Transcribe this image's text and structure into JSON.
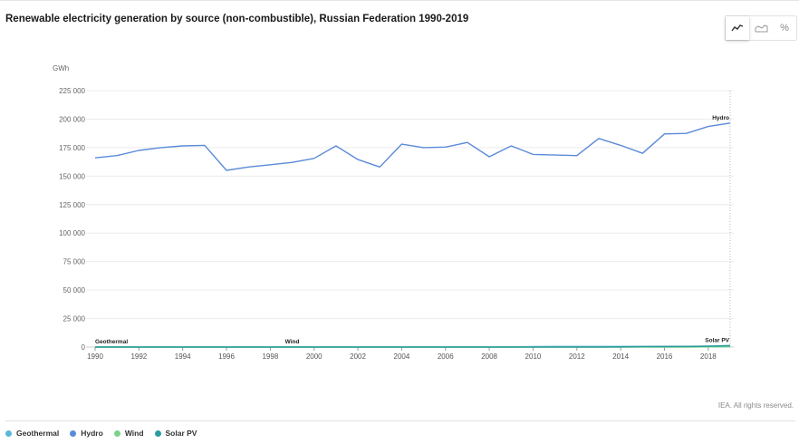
{
  "header": {
    "title": "Renewable electricity generation by source (non-combustible), Russian Federation 1990-2019"
  },
  "toolbar": {
    "buttons": [
      {
        "icon": "line-chart-icon",
        "active": true
      },
      {
        "icon": "area-chart-icon",
        "active": false
      },
      {
        "icon": "percent-icon",
        "label": "%",
        "active": false
      }
    ]
  },
  "footer": {
    "rights": "IEA. All rights reserved."
  },
  "chart_data": {
    "type": "line",
    "title": "Renewable electricity generation by source (non-combustible), Russian Federation 1990-2019",
    "ylabel": "GWh",
    "xlabel": "",
    "ylim": [
      0,
      225000
    ],
    "xlim": [
      1990,
      2019
    ],
    "yticks": [
      0,
      25000,
      50000,
      75000,
      100000,
      125000,
      150000,
      175000,
      200000,
      225000
    ],
    "ytick_labels": [
      "0",
      "25 000",
      "50 000",
      "75 000",
      "100 000",
      "125 000",
      "150 000",
      "175 000",
      "200 000",
      "225 000"
    ],
    "xticks": [
      1990,
      1992,
      1994,
      1996,
      1998,
      2000,
      2002,
      2004,
      2006,
      2008,
      2010,
      2012,
      2014,
      2016,
      2018
    ],
    "grid": true,
    "legend_position": "bottom-left",
    "x": [
      1990,
      1991,
      1992,
      1993,
      1994,
      1995,
      1996,
      1997,
      1998,
      1999,
      2000,
      2001,
      2002,
      2003,
      2004,
      2005,
      2006,
      2007,
      2008,
      2009,
      2010,
      2011,
      2012,
      2013,
      2014,
      2015,
      2016,
      2017,
      2018,
      2019
    ],
    "series": [
      {
        "name": "Geothermal",
        "color": "#58b8dc",
        "values": [
          0,
          0,
          0,
          0,
          0,
          0,
          0,
          0,
          0,
          0,
          0,
          0,
          0,
          0,
          0,
          0,
          0,
          0,
          0,
          0,
          400,
          450,
          450,
          450,
          450,
          450,
          450,
          450,
          450,
          450
        ],
        "label": "Geothermal",
        "label_year": 1990
      },
      {
        "name": "Hydro",
        "color": "#5b8ad8",
        "values": [
          166000,
          168000,
          172500,
          175000,
          176500,
          177000,
          155000,
          158000,
          160000,
          162000,
          165500,
          176500,
          164500,
          158000,
          178000,
          175000,
          175500,
          179500,
          167000,
          176500,
          169000,
          168500,
          168000,
          183000,
          177000,
          170000,
          187000,
          187500,
          193500,
          196500
        ],
        "label": "Hydro",
        "label_year": 2019
      },
      {
        "name": "Wind",
        "color": "#7ad38a",
        "values": [
          0,
          0,
          0,
          0,
          0,
          0,
          0,
          0,
          0,
          0,
          0,
          0,
          0,
          0,
          0,
          0,
          0,
          0,
          0,
          0,
          0,
          0,
          0,
          0,
          0,
          0,
          0,
          0,
          200,
          320
        ],
        "label": "Wind",
        "label_year": 1999
      },
      {
        "name": "Solar PV",
        "color": "#2e9c9c",
        "values": [
          0,
          0,
          0,
          0,
          0,
          0,
          0,
          0,
          0,
          0,
          0,
          0,
          0,
          0,
          0,
          0,
          0,
          0,
          0,
          0,
          0,
          0,
          0,
          0,
          150,
          400,
          500,
          550,
          750,
          1300
        ],
        "label": "Solar PV",
        "label_year": 2019
      }
    ]
  }
}
